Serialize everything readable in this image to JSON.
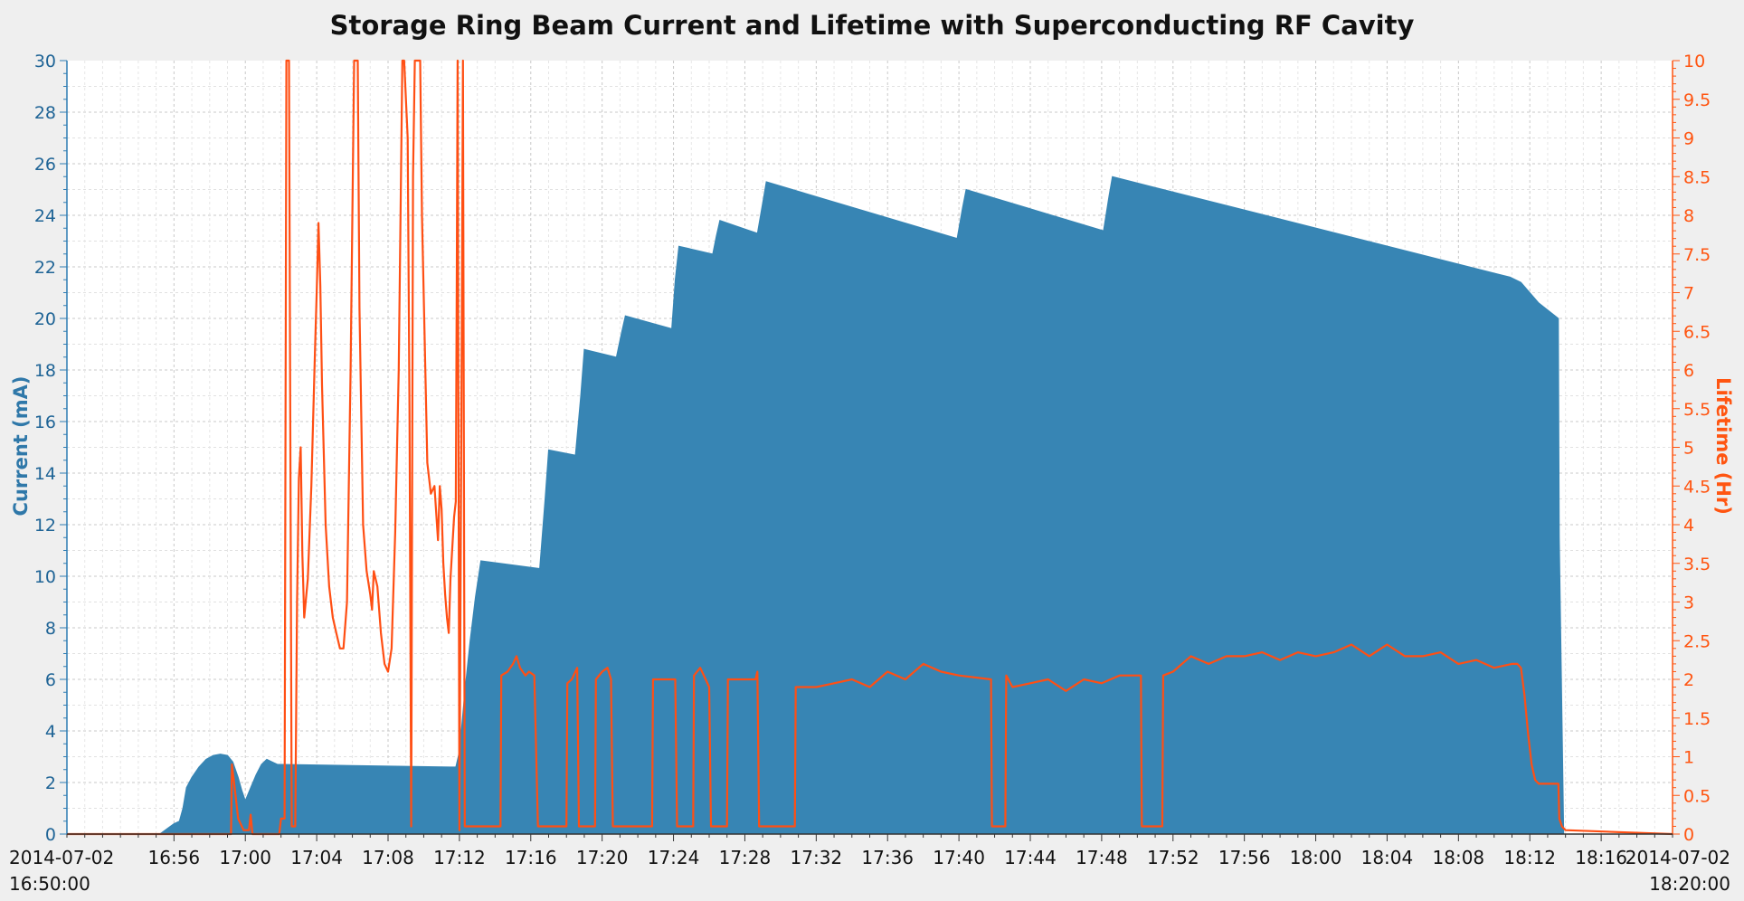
{
  "chart_data": {
    "type": "area+line",
    "title": "Storage Ring Beam Current and Lifetime with Superconducting RF Cavity",
    "left_axis": {
      "label": "Current (mA)",
      "ylim": [
        0,
        30
      ],
      "major_step": 2,
      "color": "#2f7db3"
    },
    "right_axis": {
      "label": "Lifetime (Hr)",
      "ylim": [
        0,
        10
      ],
      "major_step": 0.5,
      "color": "#ff5511"
    },
    "x_axis": {
      "range": [
        "2014-07-02 16:50:00",
        "2014-07-02 18:20:00"
      ],
      "tick_minutes": [
        6,
        10,
        14,
        18,
        22,
        26,
        30,
        34,
        38,
        42,
        46,
        50,
        54,
        58,
        62,
        66,
        70,
        74,
        78,
        82,
        86
      ],
      "tick_labels": [
        "16:56",
        "17:00",
        "17:04",
        "17:08",
        "17:12",
        "17:16",
        "17:20",
        "17:24",
        "17:28",
        "17:32",
        "17:36",
        "17:40",
        "17:44",
        "17:48",
        "17:52",
        "17:56",
        "18:00",
        "18:04",
        "18:08",
        "18:12",
        "18:16"
      ],
      "start_label_date": "2014-07-02",
      "start_label_time": "16:50:00",
      "end_label_date": "2014-07-02",
      "end_label_time": "18:20:00"
    },
    "grid": true,
    "series": [
      {
        "name": "Current (mA)",
        "kind": "area",
        "axis": "left",
        "color": "#3785b4",
        "points": [
          [
            0,
            0
          ],
          [
            5.2,
            0
          ],
          [
            5.6,
            0.2
          ],
          [
            6,
            0.4
          ],
          [
            6.3,
            0.5
          ],
          [
            6.5,
            1
          ],
          [
            6.7,
            1.8
          ],
          [
            7,
            2.2
          ],
          [
            7.4,
            2.6
          ],
          [
            7.8,
            2.9
          ],
          [
            8.2,
            3.05
          ],
          [
            8.6,
            3.1
          ],
          [
            9,
            3.05
          ],
          [
            9.3,
            2.8
          ],
          [
            9.6,
            2.2
          ],
          [
            9.8,
            1.7
          ],
          [
            10,
            1.3
          ],
          [
            10.3,
            1.8
          ],
          [
            10.6,
            2.3
          ],
          [
            10.9,
            2.7
          ],
          [
            11.2,
            2.9
          ],
          [
            11.5,
            2.8
          ],
          [
            11.8,
            2.7
          ],
          [
            12,
            2.7
          ],
          [
            21.5,
            2.6
          ],
          [
            21.8,
            2.6
          ],
          [
            22,
            3.2
          ],
          [
            22.3,
            5.5
          ],
          [
            22.6,
            7.5
          ],
          [
            22.9,
            9.2
          ],
          [
            23.2,
            10.6
          ],
          [
            26.5,
            10.3
          ],
          [
            26.8,
            13
          ],
          [
            27,
            14.9
          ],
          [
            28.5,
            14.7
          ],
          [
            28.8,
            17
          ],
          [
            29,
            18.8
          ],
          [
            30.8,
            18.5
          ],
          [
            31.1,
            19.5
          ],
          [
            31.3,
            20.1
          ],
          [
            33.9,
            19.6
          ],
          [
            34.1,
            21.5
          ],
          [
            34.3,
            22.8
          ],
          [
            36.2,
            22.5
          ],
          [
            36.4,
            23.2
          ],
          [
            36.6,
            23.8
          ],
          [
            38.7,
            23.3
          ],
          [
            39,
            24.5
          ],
          [
            39.2,
            25.3
          ],
          [
            49.9,
            23.1
          ],
          [
            50.2,
            24.3
          ],
          [
            50.4,
            25
          ],
          [
            58.1,
            23.4
          ],
          [
            58.4,
            24.7
          ],
          [
            58.6,
            25.5
          ],
          [
            80.9,
            21.6
          ],
          [
            81.5,
            21.4
          ],
          [
            82.5,
            20.6
          ],
          [
            83.6,
            20
          ],
          [
            83.65,
            11.5
          ],
          [
            83.9,
            0
          ],
          [
            90,
            0
          ]
        ]
      },
      {
        "name": "Lifetime (Hr)",
        "kind": "line",
        "axis": "right",
        "color": "#ff4f14",
        "points": [
          [
            0,
            0
          ],
          [
            9.2,
            0
          ],
          [
            9.25,
            0.9
          ],
          [
            9.4,
            0.6
          ],
          [
            9.6,
            0.2
          ],
          [
            9.9,
            0.05
          ],
          [
            10.2,
            0.05
          ],
          [
            10.3,
            0.25
          ],
          [
            10.4,
            0
          ],
          [
            11.9,
            0
          ],
          [
            12,
            0.2
          ],
          [
            12.2,
            0.2
          ],
          [
            12.3,
            10
          ],
          [
            12.45,
            10
          ],
          [
            12.6,
            0.1
          ],
          [
            12.8,
            0.1
          ],
          [
            12.9,
            3
          ],
          [
            13,
            4.6
          ],
          [
            13.1,
            5
          ],
          [
            13.2,
            3.6
          ],
          [
            13.3,
            2.8
          ],
          [
            13.5,
            3.3
          ],
          [
            13.7,
            4.5
          ],
          [
            13.9,
            6.2
          ],
          [
            14,
            7
          ],
          [
            14.1,
            7.9
          ],
          [
            14.2,
            7.1
          ],
          [
            14.3,
            5.8
          ],
          [
            14.5,
            4
          ],
          [
            14.7,
            3.2
          ],
          [
            14.9,
            2.8
          ],
          [
            15.1,
            2.6
          ],
          [
            15.3,
            2.4
          ],
          [
            15.5,
            2.4
          ],
          [
            15.7,
            3
          ],
          [
            15.9,
            6
          ],
          [
            16.1,
            10
          ],
          [
            16.3,
            10
          ],
          [
            16.4,
            6.8
          ],
          [
            16.6,
            4
          ],
          [
            16.8,
            3.4
          ],
          [
            17,
            3.1
          ],
          [
            17.1,
            2.9
          ],
          [
            17.2,
            3.4
          ],
          [
            17.4,
            3.2
          ],
          [
            17.6,
            2.6
          ],
          [
            17.8,
            2.2
          ],
          [
            18,
            2.1
          ],
          [
            18.2,
            2.4
          ],
          [
            18.4,
            3.9
          ],
          [
            18.6,
            6
          ],
          [
            18.8,
            10
          ],
          [
            18.9,
            10
          ],
          [
            19.1,
            9
          ],
          [
            19.2,
            5.5
          ],
          [
            19.3,
            0.1
          ],
          [
            19.4,
            8.5
          ],
          [
            19.5,
            10
          ],
          [
            19.6,
            10
          ],
          [
            19.8,
            10
          ],
          [
            19.9,
            8
          ],
          [
            20.1,
            5.9
          ],
          [
            20.2,
            4.8
          ],
          [
            20.4,
            4.4
          ],
          [
            20.6,
            4.5
          ],
          [
            20.8,
            3.8
          ],
          [
            20.9,
            4.5
          ],
          [
            21,
            4.2
          ],
          [
            21.1,
            3.5
          ],
          [
            21.2,
            3.1
          ],
          [
            21.3,
            2.8
          ],
          [
            21.4,
            2.6
          ],
          [
            21.5,
            3.3
          ],
          [
            21.6,
            3.7
          ],
          [
            21.7,
            4.1
          ],
          [
            21.8,
            4.3
          ],
          [
            21.85,
            7
          ],
          [
            21.9,
            10
          ],
          [
            22,
            0.05
          ],
          [
            22.1,
            5
          ],
          [
            22.2,
            10
          ],
          [
            22.3,
            0.1
          ],
          [
            24.3,
            0.1
          ],
          [
            24.35,
            2.05
          ],
          [
            24.7,
            2.1
          ],
          [
            25,
            2.2
          ],
          [
            25.2,
            2.3
          ],
          [
            25.4,
            2.15
          ],
          [
            25.7,
            2.05
          ],
          [
            25.9,
            2.1
          ],
          [
            26.2,
            2.05
          ],
          [
            26.4,
            0.1
          ],
          [
            28,
            0.1
          ],
          [
            28.05,
            1.95
          ],
          [
            28.3,
            2
          ],
          [
            28.6,
            2.15
          ],
          [
            28.7,
            0.1
          ],
          [
            29.6,
            0.1
          ],
          [
            29.65,
            2
          ],
          [
            30,
            2.1
          ],
          [
            30.3,
            2.15
          ],
          [
            30.5,
            2
          ],
          [
            30.6,
            0.1
          ],
          [
            32.8,
            0.1
          ],
          [
            32.85,
            2
          ],
          [
            34.1,
            2
          ],
          [
            34.2,
            0.1
          ],
          [
            35.1,
            0.1
          ],
          [
            35.15,
            2.05
          ],
          [
            35.5,
            2.15
          ],
          [
            35.8,
            2
          ],
          [
            36,
            1.9
          ],
          [
            36.1,
            0.1
          ],
          [
            37,
            0.1
          ],
          [
            37.05,
            2
          ],
          [
            38.6,
            2
          ],
          [
            38.7,
            2.1
          ],
          [
            38.8,
            0.1
          ],
          [
            40.8,
            0.1
          ],
          [
            40.85,
            1.9
          ],
          [
            42,
            1.9
          ],
          [
            43,
            1.95
          ],
          [
            44,
            2
          ],
          [
            45,
            1.9
          ],
          [
            46,
            2.1
          ],
          [
            47,
            2
          ],
          [
            48,
            2.2
          ],
          [
            49,
            2.1
          ],
          [
            50,
            2.05
          ],
          [
            51.8,
            2
          ],
          [
            51.85,
            0.1
          ],
          [
            52.6,
            0.1
          ],
          [
            52.65,
            2.05
          ],
          [
            53,
            1.9
          ],
          [
            54,
            1.95
          ],
          [
            55,
            2
          ],
          [
            56,
            1.85
          ],
          [
            57,
            2
          ],
          [
            58,
            1.95
          ],
          [
            59,
            2.05
          ],
          [
            60.2,
            2.05
          ],
          [
            60.25,
            0.1
          ],
          [
            61.4,
            0.1
          ],
          [
            61.45,
            2.05
          ],
          [
            62,
            2.1
          ],
          [
            62.5,
            2.2
          ],
          [
            63,
            2.3
          ],
          [
            64,
            2.2
          ],
          [
            65,
            2.3
          ],
          [
            66,
            2.3
          ],
          [
            67,
            2.35
          ],
          [
            68,
            2.25
          ],
          [
            69,
            2.35
          ],
          [
            70,
            2.3
          ],
          [
            71,
            2.35
          ],
          [
            72,
            2.45
          ],
          [
            73,
            2.3
          ],
          [
            74,
            2.45
          ],
          [
            75,
            2.3
          ],
          [
            76,
            2.3
          ],
          [
            77,
            2.35
          ],
          [
            78,
            2.2
          ],
          [
            79,
            2.25
          ],
          [
            80,
            2.15
          ],
          [
            81,
            2.2
          ],
          [
            81.3,
            2.2
          ],
          [
            81.5,
            2.15
          ],
          [
            81.7,
            1.8
          ],
          [
            81.9,
            1.3
          ],
          [
            82.1,
            0.9
          ],
          [
            82.3,
            0.7
          ],
          [
            82.5,
            0.65
          ],
          [
            83.6,
            0.65
          ],
          [
            83.65,
            0.2
          ],
          [
            83.8,
            0.1
          ],
          [
            84,
            0.05
          ],
          [
            90,
            0
          ]
        ]
      }
    ]
  }
}
